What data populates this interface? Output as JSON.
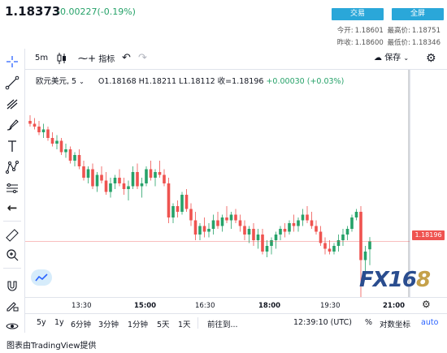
{
  "quote": {
    "price": "1.18373",
    "change": "-0.00227(-0.19%)"
  },
  "buttons": {
    "trade": "交易",
    "fullscreen": "全屏"
  },
  "stats": {
    "open_label": "今开:",
    "open": "1.18601",
    "high_label": "最高价:",
    "high": "1.18751",
    "prev_close_label": "昨收:",
    "prev_close": "1.18600",
    "low_label": "最低价:",
    "low": "1.18346"
  },
  "toolbar": {
    "interval": "5m",
    "indicators": "指标",
    "save": "保存"
  },
  "legend": {
    "symbol": "欧元美元, 5",
    "ohlc": "O1.18168  H1.18211  L1.18112  收=1.18196",
    "change": "+0.00030 (+0.03%)"
  },
  "price_tag": "1.18196",
  "time_axis": {
    "ticks": [
      "13:30",
      "15:00",
      "16:30",
      "18:00",
      "19:30",
      "21:00"
    ]
  },
  "ranges": [
    "5y",
    "1y",
    "6分钟",
    "3分钟",
    "1分钟",
    "5天",
    "1天"
  ],
  "goto_label": "前往到...",
  "clock": "12:39:10 (UTC)",
  "percent_label": "%",
  "log_label": "对数坐标",
  "auto_label": "auto",
  "footer": "图表由TradingView提供",
  "logo": {
    "main": "FX16",
    "accent": "8"
  },
  "colors": {
    "up": "#26a269",
    "down": "#ef5350",
    "accent": "#2aa7d9"
  },
  "chart_data": {
    "type": "candlestick",
    "symbol": "EURUSD",
    "interval": "5m",
    "ylim": [
      1.18,
      1.188
    ],
    "last_price": 1.18196,
    "x_ticks": [
      "13:30",
      "15:00",
      "16:30",
      "18:00",
      "19:30",
      "21:00"
    ],
    "candles": [
      [
        1.1862,
        1.1864,
        1.186,
        1.1861
      ],
      [
        1.1861,
        1.1863,
        1.1859,
        1.186
      ],
      [
        1.186,
        1.1862,
        1.1857,
        1.1858
      ],
      [
        1.1858,
        1.1861,
        1.1856,
        1.1859
      ],
      [
        1.1859,
        1.186,
        1.1855,
        1.1856
      ],
      [
        1.1856,
        1.1858,
        1.1853,
        1.1854
      ],
      [
        1.1854,
        1.1857,
        1.1852,
        1.1855
      ],
      [
        1.1855,
        1.1856,
        1.185,
        1.1851
      ],
      [
        1.1851,
        1.1854,
        1.1849,
        1.1852
      ],
      [
        1.1852,
        1.1853,
        1.1847,
        1.1848
      ],
      [
        1.1848,
        1.1851,
        1.1846,
        1.185
      ],
      [
        1.185,
        1.1852,
        1.1845,
        1.1846
      ],
      [
        1.1846,
        1.1848,
        1.1841,
        1.1842
      ],
      [
        1.1842,
        1.1846,
        1.184,
        1.1845
      ],
      [
        1.1845,
        1.1847,
        1.1838,
        1.1839
      ],
      [
        1.1839,
        1.1844,
        1.1837,
        1.1843
      ],
      [
        1.1843,
        1.1846,
        1.184,
        1.1841
      ],
      [
        1.1841,
        1.1844,
        1.1836,
        1.1837
      ],
      [
        1.1837,
        1.1842,
        1.1835,
        1.184
      ],
      [
        1.184,
        1.1843,
        1.1838,
        1.1842
      ],
      [
        1.1842,
        1.1845,
        1.1839,
        1.184
      ],
      [
        1.184,
        1.1842,
        1.1836,
        1.1838
      ],
      [
        1.1838,
        1.1841,
        1.1834,
        1.1839
      ],
      [
        1.1839,
        1.1846,
        1.1838,
        1.1844
      ],
      [
        1.1844,
        1.1847,
        1.1838,
        1.1839
      ],
      [
        1.1839,
        1.1842,
        1.1835,
        1.184
      ],
      [
        1.184,
        1.1846,
        1.1839,
        1.1845
      ],
      [
        1.1845,
        1.1848,
        1.1841,
        1.1842
      ],
      [
        1.1842,
        1.1845,
        1.1839,
        1.1844
      ],
      [
        1.1844,
        1.1848,
        1.1842,
        1.1843
      ],
      [
        1.1843,
        1.1845,
        1.1839,
        1.184
      ],
      [
        1.184,
        1.1842,
        1.1826,
        1.1828
      ],
      [
        1.1828,
        1.1833,
        1.1826,
        1.1832
      ],
      [
        1.1832,
        1.1834,
        1.1828,
        1.183
      ],
      [
        1.183,
        1.1837,
        1.1829,
        1.1836
      ],
      [
        1.1836,
        1.1838,
        1.183,
        1.1831
      ],
      [
        1.1831,
        1.1833,
        1.1825,
        1.1827
      ],
      [
        1.1827,
        1.183,
        1.182,
        1.1822
      ],
      [
        1.1822,
        1.1826,
        1.182,
        1.1825
      ],
      [
        1.1825,
        1.1828,
        1.1821,
        1.1823
      ],
      [
        1.1823,
        1.1826,
        1.1821,
        1.1824
      ],
      [
        1.1824,
        1.1829,
        1.1822,
        1.1827
      ],
      [
        1.1827,
        1.183,
        1.1824,
        1.1825
      ],
      [
        1.1825,
        1.1829,
        1.1823,
        1.1828
      ],
      [
        1.1828,
        1.1832,
        1.1826,
        1.1827
      ],
      [
        1.1827,
        1.183,
        1.1824,
        1.1829
      ],
      [
        1.1829,
        1.1831,
        1.1826,
        1.1827
      ],
      [
        1.1827,
        1.1829,
        1.1823,
        1.1825
      ],
      [
        1.1825,
        1.1827,
        1.182,
        1.1822
      ],
      [
        1.1822,
        1.1825,
        1.1819,
        1.1824
      ],
      [
        1.1824,
        1.1826,
        1.1818,
        1.182
      ],
      [
        1.182,
        1.1824,
        1.1817,
        1.1822
      ],
      [
        1.1822,
        1.1824,
        1.1815,
        1.1816
      ],
      [
        1.1816,
        1.182,
        1.1814,
        1.1818
      ],
      [
        1.1818,
        1.1821,
        1.1815,
        1.182
      ],
      [
        1.182,
        1.1823,
        1.1817,
        1.1822
      ],
      [
        1.1822,
        1.1825,
        1.182,
        1.1824
      ],
      [
        1.1824,
        1.1826,
        1.1821,
        1.1823
      ],
      [
        1.1823,
        1.1827,
        1.1822,
        1.1826
      ],
      [
        1.1826,
        1.1829,
        1.1823,
        1.1825
      ],
      [
        1.1825,
        1.1828,
        1.1823,
        1.1827
      ],
      [
        1.1827,
        1.1831,
        1.1825,
        1.1829
      ],
      [
        1.1829,
        1.1832,
        1.1826,
        1.1827
      ],
      [
        1.1827,
        1.183,
        1.1824,
        1.1825
      ],
      [
        1.1825,
        1.1827,
        1.1822,
        1.1823
      ],
      [
        1.1823,
        1.1825,
        1.1818,
        1.1819
      ],
      [
        1.1819,
        1.1821,
        1.1815,
        1.1817
      ],
      [
        1.1817,
        1.182,
        1.1815,
        1.1816
      ],
      [
        1.1816,
        1.1819,
        1.1815,
        1.1818
      ],
      [
        1.1818,
        1.1822,
        1.1816,
        1.182
      ],
      [
        1.182,
        1.1824,
        1.1818,
        1.1822
      ],
      [
        1.1822,
        1.1825,
        1.182,
        1.1824
      ],
      [
        1.1824,
        1.1829,
        1.1823,
        1.1828
      ],
      [
        1.1828,
        1.1831,
        1.1827,
        1.183
      ],
      [
        1.183,
        1.1832,
        1.18,
        1.1813
      ],
      [
        1.1813,
        1.1818,
        1.1807,
        1.1816
      ],
      [
        1.18168,
        1.18211,
        1.18112,
        1.18196
      ]
    ]
  }
}
